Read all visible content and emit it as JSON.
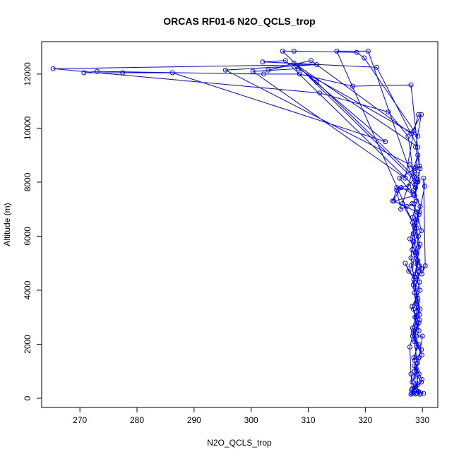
{
  "chart_data": {
    "type": "line",
    "title": "ORCAS RF01-6 N2O_QCLS_trop",
    "xlabel": "N2O_QCLS_trop",
    "ylabel": "Altitude (m)",
    "xlim": [
      263.3,
      332.7
    ],
    "ylim": [
      -340,
      13200
    ],
    "x_ticks": [
      270,
      280,
      290,
      300,
      310,
      320,
      330
    ],
    "y_ticks": [
      0,
      2000,
      4000,
      6000,
      8000,
      10000,
      12000
    ],
    "grid": false,
    "legend": "none",
    "marker": "open-circle",
    "series": [
      {
        "color": "#0000ff",
        "points": [
          [
            329.6,
            150
          ],
          [
            328.9,
            300
          ],
          [
            328.2,
            600
          ],
          [
            329.1,
            1000
          ],
          [
            328.5,
            1500
          ],
          [
            329.3,
            2000
          ],
          [
            328.3,
            2600
          ],
          [
            329.0,
            3200
          ],
          [
            328.6,
            3900
          ],
          [
            329.4,
            4700
          ],
          [
            328.2,
            5500
          ],
          [
            329.0,
            6300
          ],
          [
            328.5,
            7200
          ],
          [
            329.2,
            8000
          ],
          [
            329.6,
            8500
          ],
          [
            328.8,
            9300
          ],
          [
            329.8,
            10500
          ],
          [
            328.0,
            9800
          ],
          [
            310.5,
            12500
          ],
          [
            303.0,
            12150
          ],
          [
            307.5,
            12400
          ],
          [
            329.2,
            9300
          ],
          [
            322.0,
            12250
          ],
          [
            302.0,
            12450
          ],
          [
            306.0,
            12500
          ],
          [
            328.8,
            7800
          ],
          [
            320.5,
            12850
          ],
          [
            315.0,
            12850
          ],
          [
            328.5,
            6400
          ],
          [
            329.6,
            5700
          ],
          [
            328.4,
            4200
          ],
          [
            329.0,
            3500
          ],
          [
            329.5,
            2900
          ],
          [
            328.3,
            2300
          ],
          [
            329.8,
            1800
          ],
          [
            328.6,
            1200
          ],
          [
            329.9,
            700
          ],
          [
            328.1,
            300
          ],
          [
            330.2,
            180
          ],
          [
            329.7,
            200
          ],
          [
            328.8,
            450
          ],
          [
            329.4,
            900
          ],
          [
            328.6,
            1400
          ],
          [
            329.0,
            1900
          ],
          [
            328.4,
            2500
          ],
          [
            329.5,
            3100
          ],
          [
            329.2,
            3600
          ],
          [
            328.7,
            4100
          ],
          [
            329.8,
            4800
          ],
          [
            328.9,
            5400
          ],
          [
            329.3,
            6000
          ],
          [
            328.3,
            6700
          ],
          [
            329.0,
            7300
          ],
          [
            328.7,
            7900
          ],
          [
            327.5,
            9700
          ],
          [
            324.0,
            10600
          ],
          [
            312.0,
            11300
          ],
          [
            265.3,
            12200
          ],
          [
            311.5,
            12350
          ],
          [
            295.5,
            12150
          ],
          [
            327.8,
            8650
          ],
          [
            329.2,
            8100
          ],
          [
            328.6,
            7500
          ],
          [
            325.0,
            7300
          ],
          [
            329.0,
            6900
          ],
          [
            329.8,
            6200
          ],
          [
            328.5,
            5800
          ],
          [
            329.2,
            5100
          ],
          [
            328.8,
            4600
          ],
          [
            329.6,
            4000
          ],
          [
            328.2,
            3400
          ],
          [
            329.4,
            2800
          ],
          [
            328.5,
            2200
          ],
          [
            329.9,
            1600
          ],
          [
            328.9,
            1100
          ],
          [
            329.2,
            500
          ],
          [
            328.2,
            180
          ],
          [
            329.0,
            190
          ],
          [
            329.3,
            250
          ],
          [
            328.5,
            800
          ],
          [
            329.1,
            1300
          ],
          [
            328.6,
            2100
          ],
          [
            329.0,
            2700
          ],
          [
            328.4,
            3300
          ],
          [
            329.5,
            4300
          ],
          [
            328.8,
            5000
          ],
          [
            329.3,
            5600
          ],
          [
            328.9,
            6600
          ],
          [
            329.6,
            7100
          ],
          [
            328.4,
            7700
          ],
          [
            325.5,
            7800
          ],
          [
            327.6,
            7850
          ],
          [
            329.0,
            8300
          ],
          [
            328.8,
            8550
          ],
          [
            329.2,
            9000
          ],
          [
            326.5,
            7200
          ],
          [
            328.3,
            6500
          ],
          [
            328.9,
            5300
          ],
          [
            328.0,
            4900
          ],
          [
            328.6,
            4500
          ],
          [
            327.6,
            4700
          ],
          [
            327.0,
            5000
          ],
          [
            328.5,
            4400
          ],
          [
            329.0,
            3800
          ],
          [
            329.6,
            3300
          ],
          [
            328.7,
            3000
          ],
          [
            329.4,
            2500
          ],
          [
            329.0,
            2300
          ],
          [
            330.0,
            2300
          ],
          [
            329.4,
            1500
          ],
          [
            328.6,
            1000
          ],
          [
            329.8,
            600
          ],
          [
            328.7,
            400
          ],
          [
            328.0,
            150
          ],
          [
            328.8,
            160
          ],
          [
            328.2,
            350
          ],
          [
            328.0,
            900
          ],
          [
            327.8,
            1900
          ],
          [
            328.4,
            2400
          ],
          [
            328.9,
            3000
          ],
          [
            329.2,
            3700
          ],
          [
            328.6,
            4300
          ],
          [
            328.0,
            5200
          ],
          [
            328.4,
            6100
          ],
          [
            328.9,
            6500
          ],
          [
            329.5,
            6900
          ],
          [
            330.4,
            7850
          ],
          [
            330.2,
            8150
          ],
          [
            330.5,
            4900
          ],
          [
            329.9,
            4600
          ],
          [
            329.5,
            4900
          ],
          [
            328.8,
            5400
          ],
          [
            327.8,
            5900
          ],
          [
            328.6,
            6300
          ],
          [
            329.4,
            6800
          ],
          [
            328.2,
            7200
          ],
          [
            327.3,
            7100
          ],
          [
            326.2,
            7000
          ],
          [
            325.5,
            7700
          ],
          [
            324.8,
            7300
          ],
          [
            326.3,
            7800
          ],
          [
            328.4,
            7550
          ],
          [
            326.0,
            8150
          ],
          [
            328.7,
            8500
          ],
          [
            329.5,
            8600
          ],
          [
            328.0,
            11600
          ],
          [
            317.8,
            11550
          ],
          [
            308.5,
            12000
          ],
          [
            302.2,
            12000
          ],
          [
            273.0,
            12100
          ],
          [
            270.7,
            12050
          ],
          [
            277.5,
            12050
          ],
          [
            286.2,
            12050
          ],
          [
            323.5,
            9500
          ],
          [
            308.0,
            12300
          ],
          [
            311.5,
            11700
          ],
          [
            328.6,
            8200
          ],
          [
            329.0,
            8000
          ],
          [
            305.5,
            12850
          ],
          [
            307.5,
            12850
          ],
          [
            318.5,
            12800
          ],
          [
            319.8,
            12600
          ],
          [
            329.2,
            9700
          ],
          [
            308.2,
            12200
          ],
          [
            300.3,
            12100
          ],
          [
            327.0,
            8150
          ],
          [
            328.5,
            9900
          ],
          [
            329.3,
            10500
          ]
        ]
      }
    ]
  }
}
